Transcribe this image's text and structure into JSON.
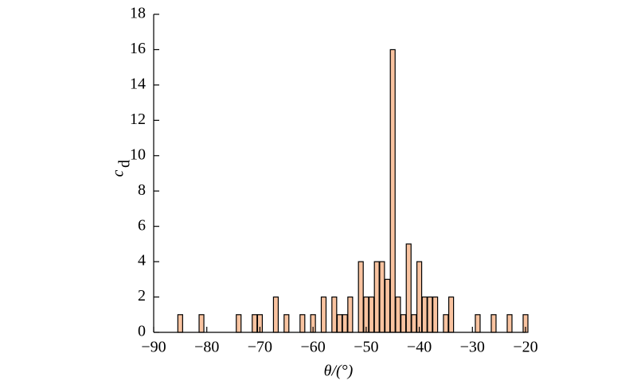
{
  "chart_data": {
    "type": "bar",
    "xlabel": "θ/(°)",
    "ylabel": "c",
    "ylabel_sub": "d",
    "x": [
      -85,
      -81,
      -74,
      -71,
      -70,
      -67,
      -65,
      -62,
      -60,
      -58,
      -56,
      -55,
      -54,
      -53,
      -51,
      -50,
      -49,
      -48,
      -47,
      -46,
      -45,
      -44,
      -43,
      -42,
      -41,
      -40,
      -39,
      -38,
      -37,
      -35,
      -34,
      -29,
      -26,
      -23,
      -20
    ],
    "values": [
      1,
      1,
      1,
      1,
      1,
      2,
      1,
      1,
      1,
      2,
      2,
      1,
      1,
      2,
      4,
      2,
      2,
      4,
      4,
      3,
      16,
      2,
      1,
      5,
      1,
      4,
      2,
      2,
      2,
      1,
      2,
      1,
      1,
      1,
      1
    ],
    "color": "#f9c3a0",
    "xlim": [
      -90,
      -20
    ],
    "xticks": [
      {
        "value": -90,
        "label": "−90"
      },
      {
        "value": -80,
        "label": "−80"
      },
      {
        "value": -70,
        "label": "−70"
      },
      {
        "value": -60,
        "label": "−60"
      },
      {
        "value": -50,
        "label": "−50"
      },
      {
        "value": -40,
        "label": "−40"
      },
      {
        "value": -30,
        "label": "−30"
      },
      {
        "value": -20,
        "label": "−20"
      }
    ],
    "ylim": [
      0,
      18
    ],
    "yticks": [
      0,
      2,
      4,
      6,
      8,
      10,
      12,
      14,
      16,
      18
    ]
  }
}
